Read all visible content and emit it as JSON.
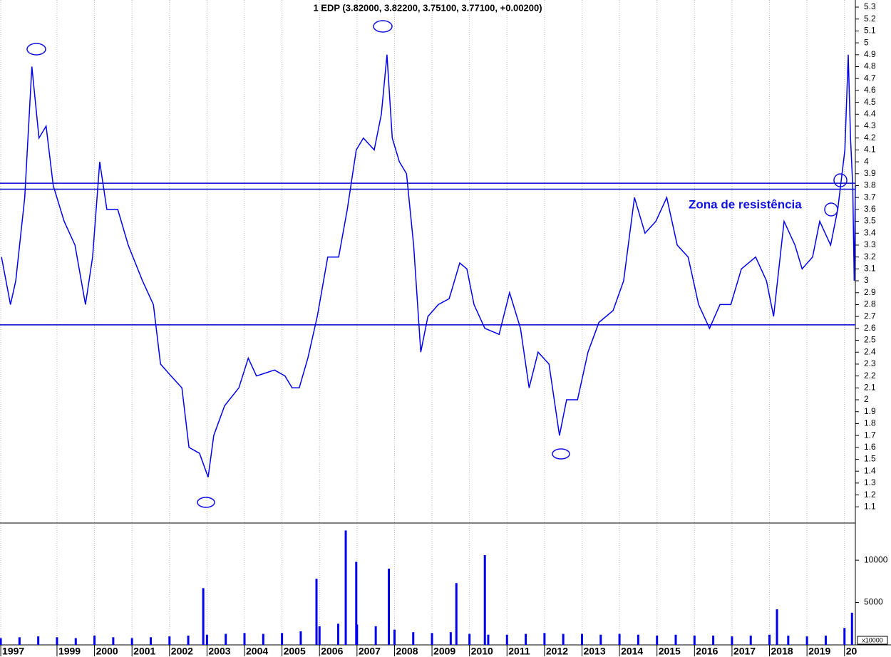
{
  "chart_data": [
    {
      "type": "line",
      "title": "1 EDP (3.82000, 3.82200, 3.75100, 3.77100, +0.00200)",
      "annotation": "Zona de resistência",
      "color": "#0000ee",
      "xlim": [
        1997.48,
        2020.29
      ],
      "ylim": [
        0.97,
        5.36
      ],
      "yticks": [
        1.1,
        1.2,
        1.3,
        1.4,
        1.5,
        1.6,
        1.7,
        1.8,
        1.9,
        2.0,
        2.1,
        2.2,
        2.3,
        2.4,
        2.5,
        2.6,
        2.7,
        2.8,
        2.9,
        3.0,
        3.1,
        3.2,
        3.3,
        3.4,
        3.5,
        3.6,
        3.7,
        3.8,
        3.9,
        4.0,
        4.1,
        4.2,
        4.3,
        4.4,
        4.5,
        4.6,
        4.7,
        4.8,
        4.9,
        5.0,
        5.1,
        5.2,
        5.3
      ],
      "hlines": [
        3.82,
        3.77,
        2.63
      ],
      "x": [
        1997.52,
        1997.76,
        1997.9,
        1998.14,
        1998.33,
        1998.52,
        1998.71,
        1998.9,
        1999.19,
        1999.48,
        1999.76,
        1999.95,
        2000.14,
        2000.33,
        2000.62,
        2000.9,
        2001.28,
        2001.57,
        2001.76,
        2002.04,
        2002.33,
        2002.52,
        2002.8,
        2003.03,
        2003.18,
        2003.47,
        2003.85,
        2004.1,
        2004.32,
        2004.8,
        2005.08,
        2005.27,
        2005.46,
        2005.69,
        2005.94,
        2006.22,
        2006.51,
        2006.74,
        2006.98,
        2007.17,
        2007.46,
        2007.65,
        2007.8,
        2007.94,
        2008.13,
        2008.32,
        2008.51,
        2008.7,
        2008.89,
        2009.17,
        2009.46,
        2009.74,
        2009.93,
        2010.12,
        2010.41,
        2010.79,
        2011.07,
        2011.36,
        2011.59,
        2011.83,
        2012.12,
        2012.4,
        2012.59,
        2012.88,
        2013.16,
        2013.45,
        2013.83,
        2014.11,
        2014.4,
        2014.68,
        2014.97,
        2015.26,
        2015.54,
        2015.83,
        2016.11,
        2016.4,
        2016.68,
        2016.97,
        2017.25,
        2017.63,
        2017.92,
        2018.11,
        2018.39,
        2018.68,
        2018.87,
        2019.15,
        2019.34,
        2019.63,
        2019.82,
        2020.01,
        2020.1,
        2020.16,
        2020.22,
        2020.26,
        2020.29
      ],
      "values": [
        3.2,
        2.8,
        3.0,
        3.7,
        4.8,
        4.2,
        4.3,
        3.8,
        3.5,
        3.3,
        2.8,
        3.2,
        4.0,
        3.6,
        3.6,
        3.3,
        3.0,
        2.8,
        2.3,
        2.2,
        2.1,
        1.6,
        1.55,
        1.35,
        1.7,
        1.95,
        2.1,
        2.35,
        2.2,
        2.25,
        2.2,
        2.1,
        2.1,
        2.35,
        2.7,
        3.2,
        3.2,
        3.6,
        4.1,
        4.2,
        4.1,
        4.4,
        4.9,
        4.2,
        4.0,
        3.9,
        3.3,
        2.4,
        2.7,
        2.8,
        2.85,
        3.15,
        3.1,
        2.8,
        2.6,
        2.55,
        2.9,
        2.6,
        2.1,
        2.4,
        2.3,
        1.7,
        2.0,
        2.0,
        2.4,
        2.65,
        2.75,
        3.0,
        3.7,
        3.4,
        3.5,
        3.7,
        3.3,
        3.2,
        2.8,
        2.6,
        2.8,
        2.8,
        3.1,
        3.2,
        3.0,
        2.7,
        3.5,
        3.3,
        3.1,
        3.2,
        3.5,
        3.3,
        3.6,
        4.1,
        4.9,
        4.2,
        3.8,
        3.0,
        3.8
      ]
    },
    {
      "type": "bar",
      "ylabel": "x10000",
      "color": "#0000ee",
      "xlim": [
        1997.48,
        2020.29
      ],
      "ylim": [
        0,
        14300
      ],
      "yticks": [
        5000,
        10000
      ],
      "xticks": [
        {
          "value": 1997.5,
          "label": "1997"
        },
        1999,
        2000,
        2001,
        2002,
        2003,
        2004,
        2005,
        2006,
        2007,
        2008,
        2009,
        2010,
        2011,
        2012,
        2013,
        2014,
        2015,
        2016,
        2017,
        2018,
        2019,
        {
          "value": 2020,
          "label": "20"
        }
      ],
      "x": [
        1997.5,
        1998,
        1998.5,
        1999,
        1999.5,
        2000,
        2000.5,
        2001,
        2001.5,
        2002,
        2002.5,
        2002.9,
        2003,
        2003.5,
        2004,
        2004.5,
        2005,
        2005.5,
        2005.92,
        2006,
        2006.5,
        2006.7,
        2006.98,
        2007,
        2007.5,
        2007.85,
        2008,
        2008.5,
        2009,
        2009.5,
        2009.65,
        2010,
        2010.41,
        2010.5,
        2011,
        2011.5,
        2012,
        2012.5,
        2013,
        2013.5,
        2014,
        2014.5,
        2015,
        2015.5,
        2016,
        2016.5,
        2017,
        2017.5,
        2018,
        2018.2,
        2018.5,
        2019,
        2019.5,
        2020,
        2020.2
      ],
      "values": [
        800,
        900,
        1000,
        900,
        800,
        1100,
        900,
        800,
        900,
        1000,
        1100,
        6700,
        1200,
        1300,
        1400,
        1300,
        1400,
        1600,
        7800,
        2200,
        2500,
        13500,
        9800,
        2400,
        2200,
        9000,
        1800,
        1500,
        1400,
        1500,
        7300,
        1300,
        10600,
        1200,
        1200,
        1300,
        1400,
        1300,
        1300,
        1200,
        1300,
        1200,
        1100,
        1200,
        1100,
        1100,
        1000,
        1100,
        1200,
        4200,
        1100,
        1000,
        1100,
        2000,
        3800
      ]
    }
  ]
}
